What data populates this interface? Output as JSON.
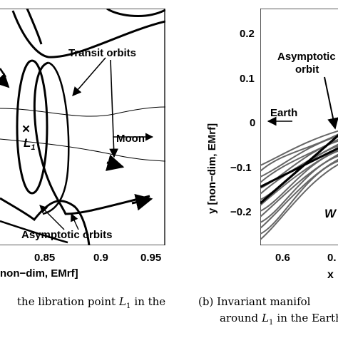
{
  "panel_a": {
    "x_ticks": [
      "0.85",
      "0.9",
      "0.95"
    ],
    "x_label_fragment": "non−dim, EMrf]",
    "labels": {
      "transit": "Transit orbits",
      "moon": "Moon",
      "l1_marker": "×",
      "l1_letter": "L",
      "l1_sub": "1",
      "asymptotic": "Asymptotic orbits"
    },
    "caption_fragment": "the libration point",
    "caption_math_letter": "L",
    "caption_math_sub": "1",
    "caption_tail": "in the"
  },
  "panel_b": {
    "y_ticks": [
      "0.2",
      "0.1",
      "0",
      "−0.1",
      "−0.2"
    ],
    "x_ticks": [
      "0.6",
      "0."
    ],
    "y_label": "y  [non−dim, EMrf]",
    "x_label": "x",
    "labels": {
      "asym_line1": "Asymptotic",
      "asym_line2": "orbit",
      "earth": "Earth",
      "w_fragment": "W"
    },
    "caption_line1": "(b) Invariant manifol",
    "caption_line2_pre": "around",
    "caption_math_letter": "L",
    "caption_math_sub": "1",
    "caption_line2_post": "in the Earth"
  }
}
